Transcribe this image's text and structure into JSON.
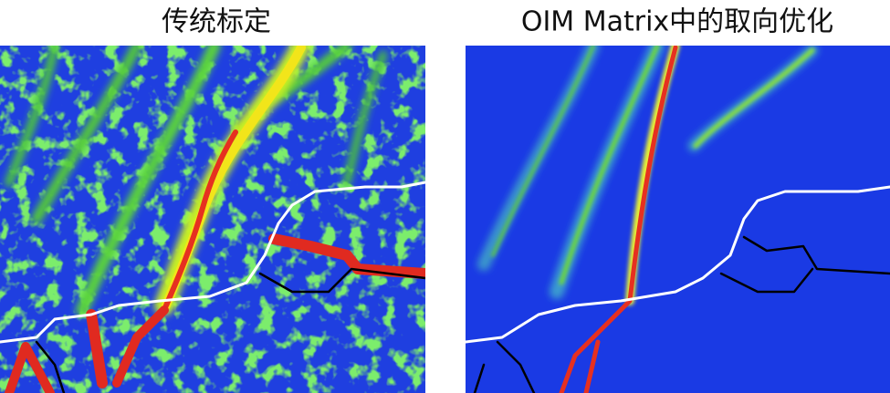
{
  "panels": [
    {
      "title": "传统标定"
    },
    {
      "title": "OIM Matrix中的取向优化"
    }
  ]
}
